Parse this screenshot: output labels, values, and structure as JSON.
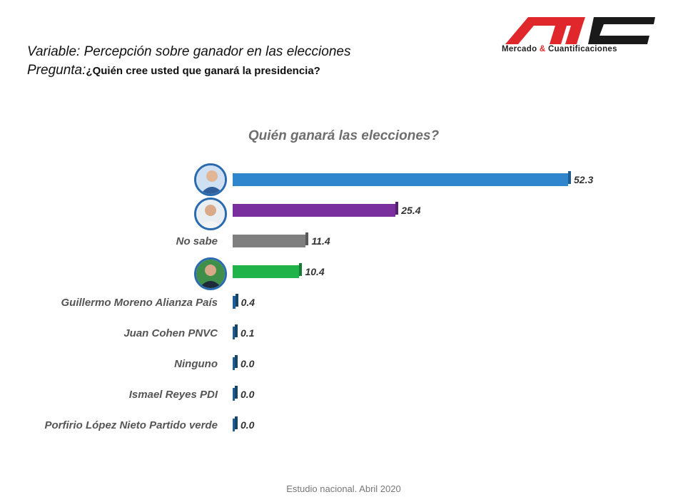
{
  "header": {
    "variable_line": "Variable: Percepción sobre ganador en las elecciones",
    "question_lead": "Pregunta:",
    "question_text": "¿Quién cree usted que ganará la presidencia?"
  },
  "logo": {
    "text_part1": "Mercado ",
    "text_amp": "&",
    "text_part2": " Cuantificaciones"
  },
  "footer": {
    "text": "Estudio nacional. Abril 2020"
  },
  "colors": {
    "blue": "#2f86cc",
    "purple": "#7a2f9f",
    "gray": "#7f7f7f",
    "green": "#1fb34a",
    "dark_blue": "#1f5f94",
    "logo_red": "#e0272b"
  },
  "chart_data": {
    "type": "bar",
    "orientation": "horizontal",
    "title": "Quién ganará las elecciones?",
    "categories": [
      "",
      "",
      "No sabe",
      "",
      "Guillermo Moreno Alianza País",
      "Juan Cohen PNVC",
      "Ninguno",
      "Ismael Reyes PDI",
      "Porfirio López Nieto Partido verde"
    ],
    "values": [
      52.3,
      25.4,
      11.4,
      10.4,
      0.4,
      0.1,
      0.0,
      0.0,
      0.0
    ],
    "value_labels": [
      "52.3",
      "25.4",
      "11.4",
      "10.4",
      "0.4",
      "0.1",
      "0.0",
      "0.0",
      "0.0"
    ],
    "bar_colors": [
      "#2f86cc",
      "#7a2f9f",
      "#7f7f7f",
      "#1fb34a",
      "#1f5f94",
      "#1f5f94",
      "#1f5f94",
      "#1f5f94",
      "#1f5f94"
    ],
    "xlim": [
      0,
      60
    ],
    "grid": false,
    "legend": "none"
  }
}
